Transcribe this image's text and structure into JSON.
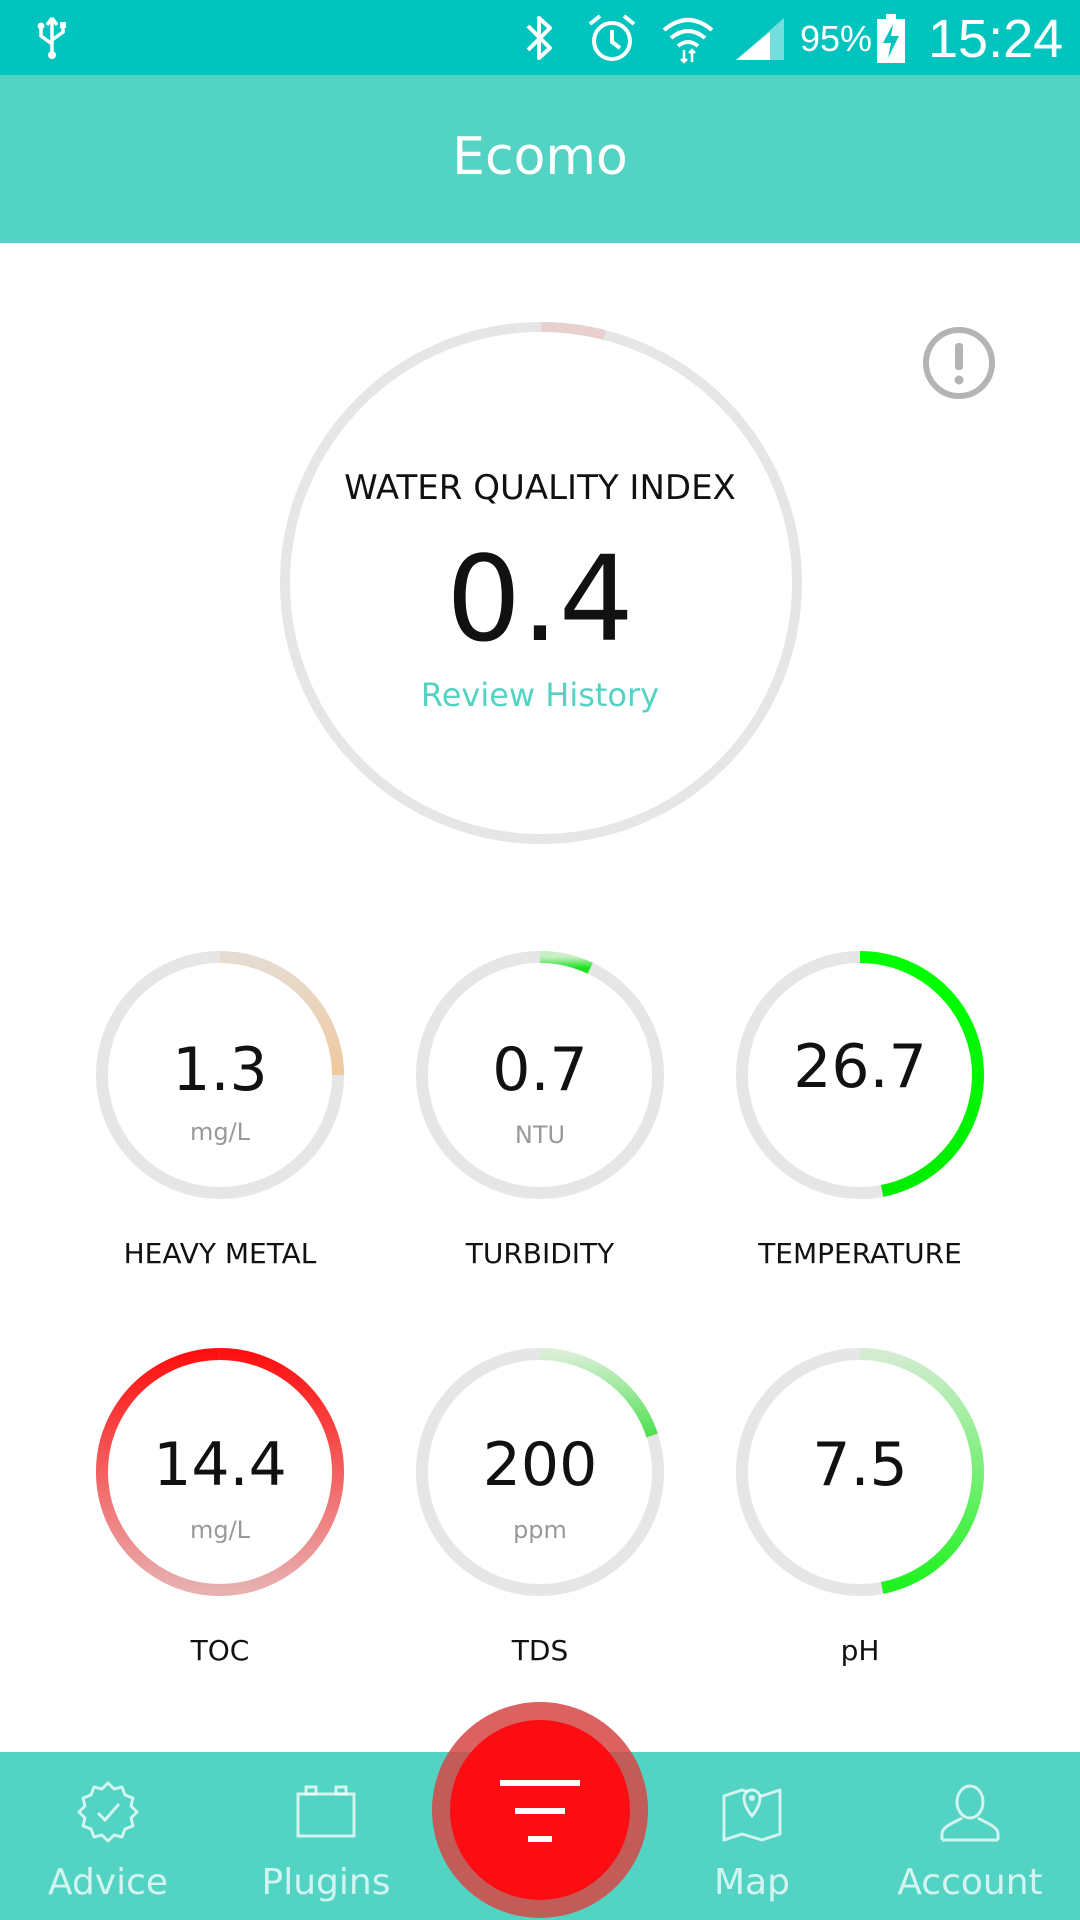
{
  "status_bar": {
    "battery_percent_text": "95%",
    "time": "15:24",
    "icons": [
      "usb-icon",
      "bluetooth-icon",
      "alarm-icon",
      "wifi-icon",
      "signal-icon",
      "battery-charging-icon"
    ]
  },
  "app_bar": {
    "title": "Ecomo"
  },
  "colors": {
    "status_bar": "#00c4bd",
    "app_bar": "#52d3c3",
    "accent": "#52d3c3",
    "track": "#e6e6e6",
    "fab": "#fc0d12"
  },
  "water_quality": {
    "title": "WATER QUALITY INDEX",
    "value": "0.4",
    "link": "Review History",
    "fill_fraction": 0.04,
    "fill_color": "#e8d0cf"
  },
  "metrics": [
    {
      "value": "1.3",
      "unit": "mg/L",
      "label": "HEAVY METAL",
      "fill_fraction": 0.25,
      "color_start": "#e6dcd2",
      "color_end": "#f0c89c"
    },
    {
      "value": "0.7",
      "unit": "NTU",
      "label": "TURBIDITY",
      "fill_fraction": 0.07,
      "color_start": "#c9efc4",
      "color_end": "#18e21e"
    },
    {
      "value": "26.7",
      "unit": "",
      "label": "TEMPERATURE",
      "fill_fraction": 0.47,
      "color_start": "#00ff00",
      "color_end": "#00ee00"
    },
    {
      "value": "14.4",
      "unit": "mg/L",
      "label": "TOC",
      "fill_fraction": 1.0,
      "color_start": "#ff1010",
      "color_end": "#e8b0b0"
    },
    {
      "value": "200",
      "unit": "ppm",
      "label": "TDS",
      "fill_fraction": 0.2,
      "color_start": "#d8efd6",
      "color_end": "#4ee04e"
    },
    {
      "value": "7.5",
      "unit": "",
      "label": "pH",
      "fill_fraction": 0.47,
      "color_start": "#d4ecd2",
      "color_end": "#1ef21e"
    }
  ],
  "bottom_nav": {
    "items": [
      {
        "label": "Advice",
        "icon": "badge-check-icon"
      },
      {
        "label": "Plugins",
        "icon": "battery-plugin-icon"
      },
      {
        "label": "Map",
        "icon": "map-pin-icon"
      },
      {
        "label": "Account",
        "icon": "user-icon"
      }
    ],
    "fab_icon": "filter-icon"
  }
}
